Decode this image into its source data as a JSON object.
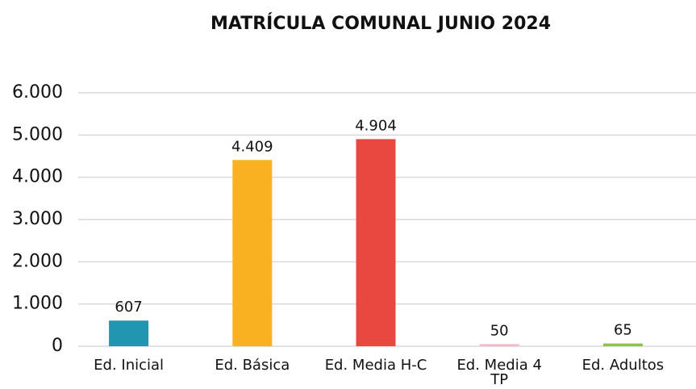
{
  "chart_data": {
    "type": "bar",
    "title": "MATRÍCULA COMUNAL JUNIO 2024",
    "categories": [
      "Ed. Inicial",
      "Ed. Básica",
      "Ed. Media H-C",
      "Ed. Media 4 TP",
      "Ed. Adultos"
    ],
    "values": [
      607,
      4409,
      4904,
      50,
      65
    ],
    "value_labels": [
      "607",
      "4.409",
      "4.904",
      "50",
      "65"
    ],
    "colors": [
      "#2196b0",
      "#f9b121",
      "#e8483f",
      "#f4b8c8",
      "#8bc34a"
    ],
    "ylim": [
      0,
      6000
    ],
    "yticks": [
      0,
      {
        "value": 1000,
        "label": "1.000"
      },
      {
        "value": 2000,
        "label": "2.000"
      },
      {
        "value": 3000,
        "label": "3.000"
      },
      {
        "value": 4000,
        "label": "4.000"
      },
      {
        "value": 5000,
        "label": "5.000"
      },
      {
        "value": 6000,
        "label": "6.000"
      }
    ],
    "grid": true
  }
}
